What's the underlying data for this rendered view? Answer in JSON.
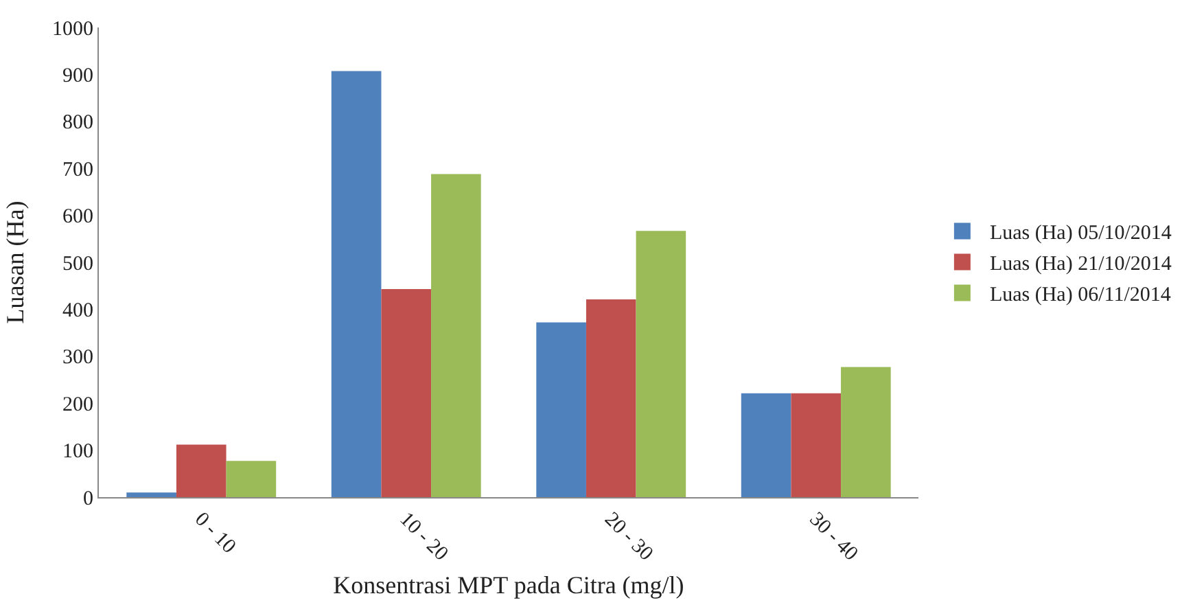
{
  "chart_data": {
    "type": "bar",
    "xlabel": "Konsentrasi MPT pada Citra (mg/l)",
    "ylabel": "Luasan (Ha)",
    "categories": [
      "0 - 10",
      "10 - 20",
      "20 - 30",
      "30 - 40"
    ],
    "series": [
      {
        "name": "Luas (Ha) 05/10/2014",
        "color": "#4f81bd",
        "values": [
          10,
          907,
          372,
          221
        ]
      },
      {
        "name": "Luas (Ha) 21/10/2014",
        "color": "#c0504d",
        "values": [
          112,
          443,
          421,
          221
        ]
      },
      {
        "name": "Luas (Ha) 06/11/2014",
        "color": "#9bbb59",
        "values": [
          77,
          688,
          567,
          277
        ]
      }
    ],
    "ylim": [
      0,
      1000
    ],
    "yticks": [
      0,
      100,
      200,
      300,
      400,
      500,
      600,
      700,
      800,
      900,
      1000
    ],
    "legend": "right"
  }
}
